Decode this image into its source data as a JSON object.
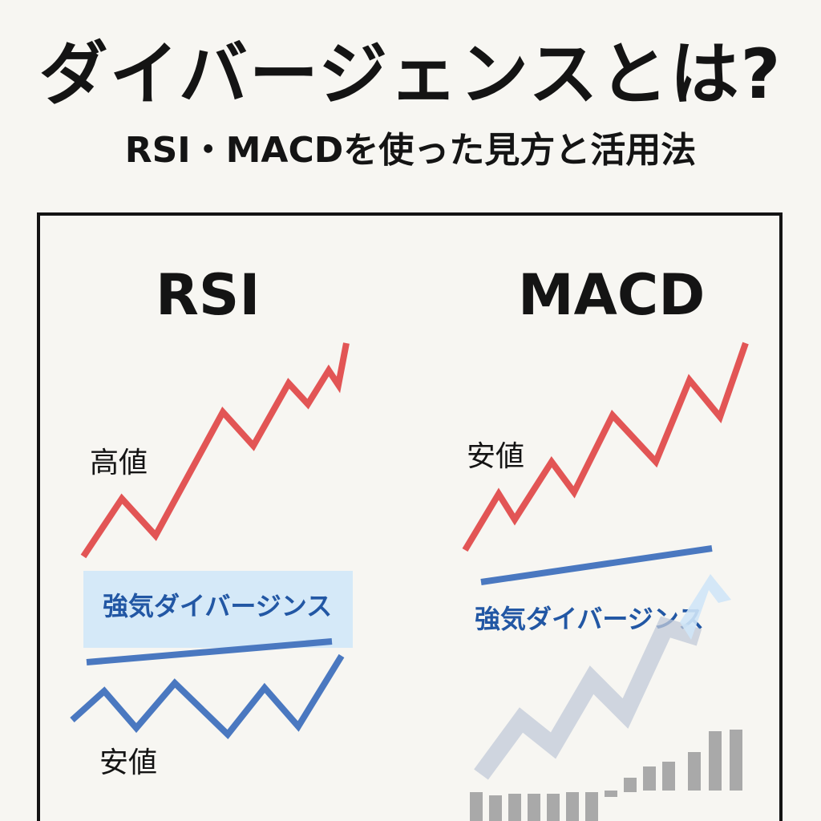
{
  "title": "ダイバージェンスとは?",
  "subtitle": "RSI・MACDを使った見方と活用法",
  "rsi": {
    "heading": "RSI",
    "top_label": "高値",
    "divergence_label": "強気ダイバージンス",
    "bottom_label": "安値"
  },
  "macd": {
    "heading": "MACD",
    "top_label": "安値",
    "divergence_label": "強気ダイバージンス"
  },
  "colors": {
    "price_line": "#e25555",
    "indicator_line": "#4a78c0",
    "highlight_box": "#d5e9f8",
    "faded_line": "#c2cad8",
    "histogram": "#a9a9a9",
    "divergence_text": "#2257a4"
  }
}
